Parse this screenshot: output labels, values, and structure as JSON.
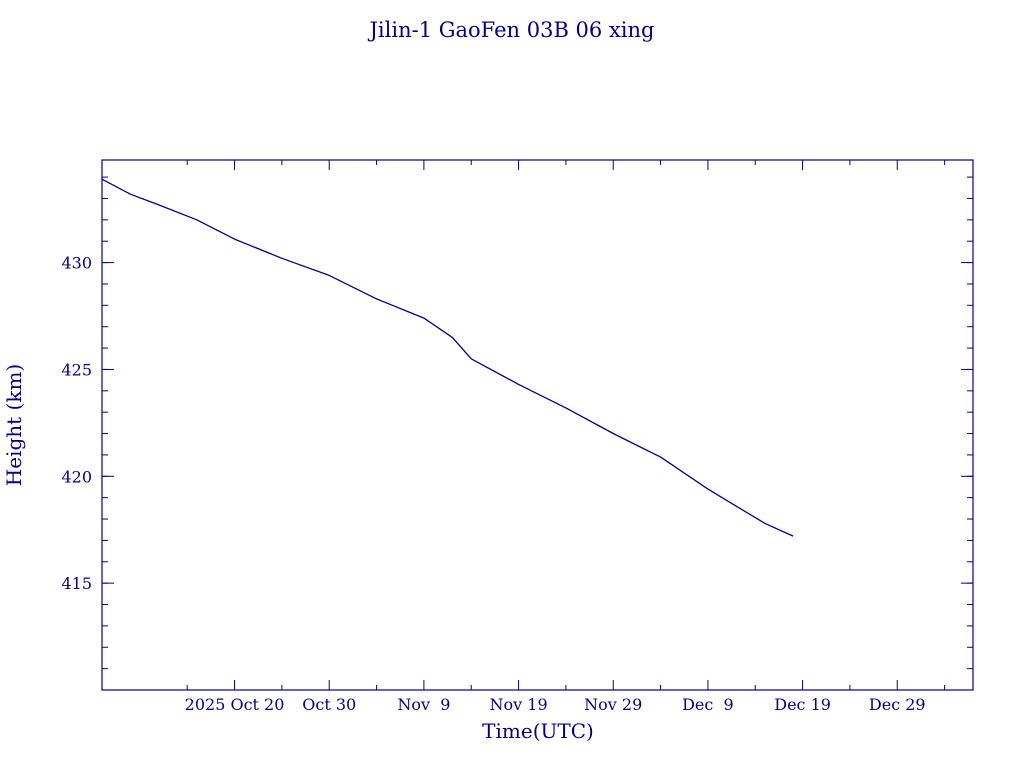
{
  "chart_data": {
    "type": "line",
    "title": "Jilin-1 GaoFen 03B 06 xing",
    "xlabel": "Time(UTC)",
    "ylabel": "Height (km)",
    "colors": {
      "axes": "#00008b",
      "series": "#00008b",
      "background": "#ffffff"
    },
    "xlim": [
      "2025-10-06",
      "2026-01-06"
    ],
    "ylim": [
      410,
      434.8
    ],
    "x_major_ticks": [
      {
        "date": "2025-10-20",
        "label": "2025 Oct 20"
      },
      {
        "date": "2025-10-30",
        "label": "Oct 30"
      },
      {
        "date": "2025-11-09",
        "label": "Nov  9"
      },
      {
        "date": "2025-11-19",
        "label": "Nov 19"
      },
      {
        "date": "2025-11-29",
        "label": "Nov 29"
      },
      {
        "date": "2025-12-09",
        "label": "Dec  9"
      },
      {
        "date": "2025-12-19",
        "label": "Dec 19"
      },
      {
        "date": "2025-12-29",
        "label": "Dec 29"
      }
    ],
    "x_minor_ticks": [
      "2025-10-15",
      "2025-10-25",
      "2025-11-04",
      "2025-11-14",
      "2025-11-24",
      "2025-12-04",
      "2025-12-14",
      "2025-12-24",
      "2026-01-03"
    ],
    "y_major_ticks": [
      415,
      420,
      425,
      430
    ],
    "y_minor_tick_step": 1,
    "grid": false,
    "series": [
      {
        "points": [
          [
            "2025-10-06",
            433.9
          ],
          [
            "2025-10-09",
            433.2
          ],
          [
            "2025-10-12",
            432.7
          ],
          [
            "2025-10-16",
            432.0
          ],
          [
            "2025-10-20",
            431.1
          ],
          [
            "2025-10-25",
            430.2
          ],
          [
            "2025-10-30",
            429.4
          ],
          [
            "2025-11-04",
            428.3
          ],
          [
            "2025-11-09",
            427.4
          ],
          [
            "2025-11-12",
            426.5
          ],
          [
            "2025-11-13",
            426.0
          ],
          [
            "2025-11-14",
            425.5
          ],
          [
            "2025-11-19",
            424.3
          ],
          [
            "2025-11-24",
            423.2
          ],
          [
            "2025-11-29",
            422.0
          ],
          [
            "2025-12-04",
            420.9
          ],
          [
            "2025-12-09",
            419.4
          ],
          [
            "2025-12-12",
            418.6
          ],
          [
            "2025-12-15",
            417.8
          ],
          [
            "2025-12-18",
            417.2
          ]
        ]
      }
    ]
  }
}
